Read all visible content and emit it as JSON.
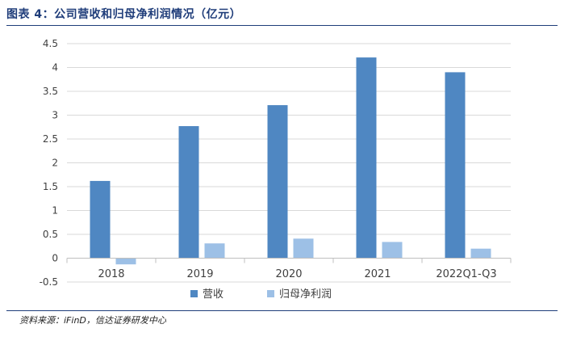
{
  "figure": {
    "title": "图表 4：公司营收和归母净利润情况（亿元）",
    "source": "资料来源：iFinD，信达证券研发中心"
  },
  "colors": {
    "revenue": "#4f87c2",
    "net_profit": "#9dc0e6",
    "grid": "#d9d9d9",
    "axis_text": "#404040"
  },
  "chart_data": {
    "type": "bar",
    "categories": [
      "2018",
      "2019",
      "2020",
      "2021",
      "2022Q1-Q3"
    ],
    "series": [
      {
        "name": "营收",
        "values": [
          1.62,
          2.77,
          3.21,
          4.21,
          3.9
        ]
      },
      {
        "name": "归母净利润",
        "values": [
          -0.13,
          0.31,
          0.41,
          0.34,
          0.2
        ]
      }
    ],
    "ylim": [
      -0.5,
      4.5
    ],
    "yticks": [
      "-0.5",
      "0",
      "0.5",
      "1",
      "1.5",
      "2",
      "2.5",
      "3",
      "3.5",
      "4",
      "4.5"
    ],
    "grid": true,
    "legend_position": "bottom"
  }
}
